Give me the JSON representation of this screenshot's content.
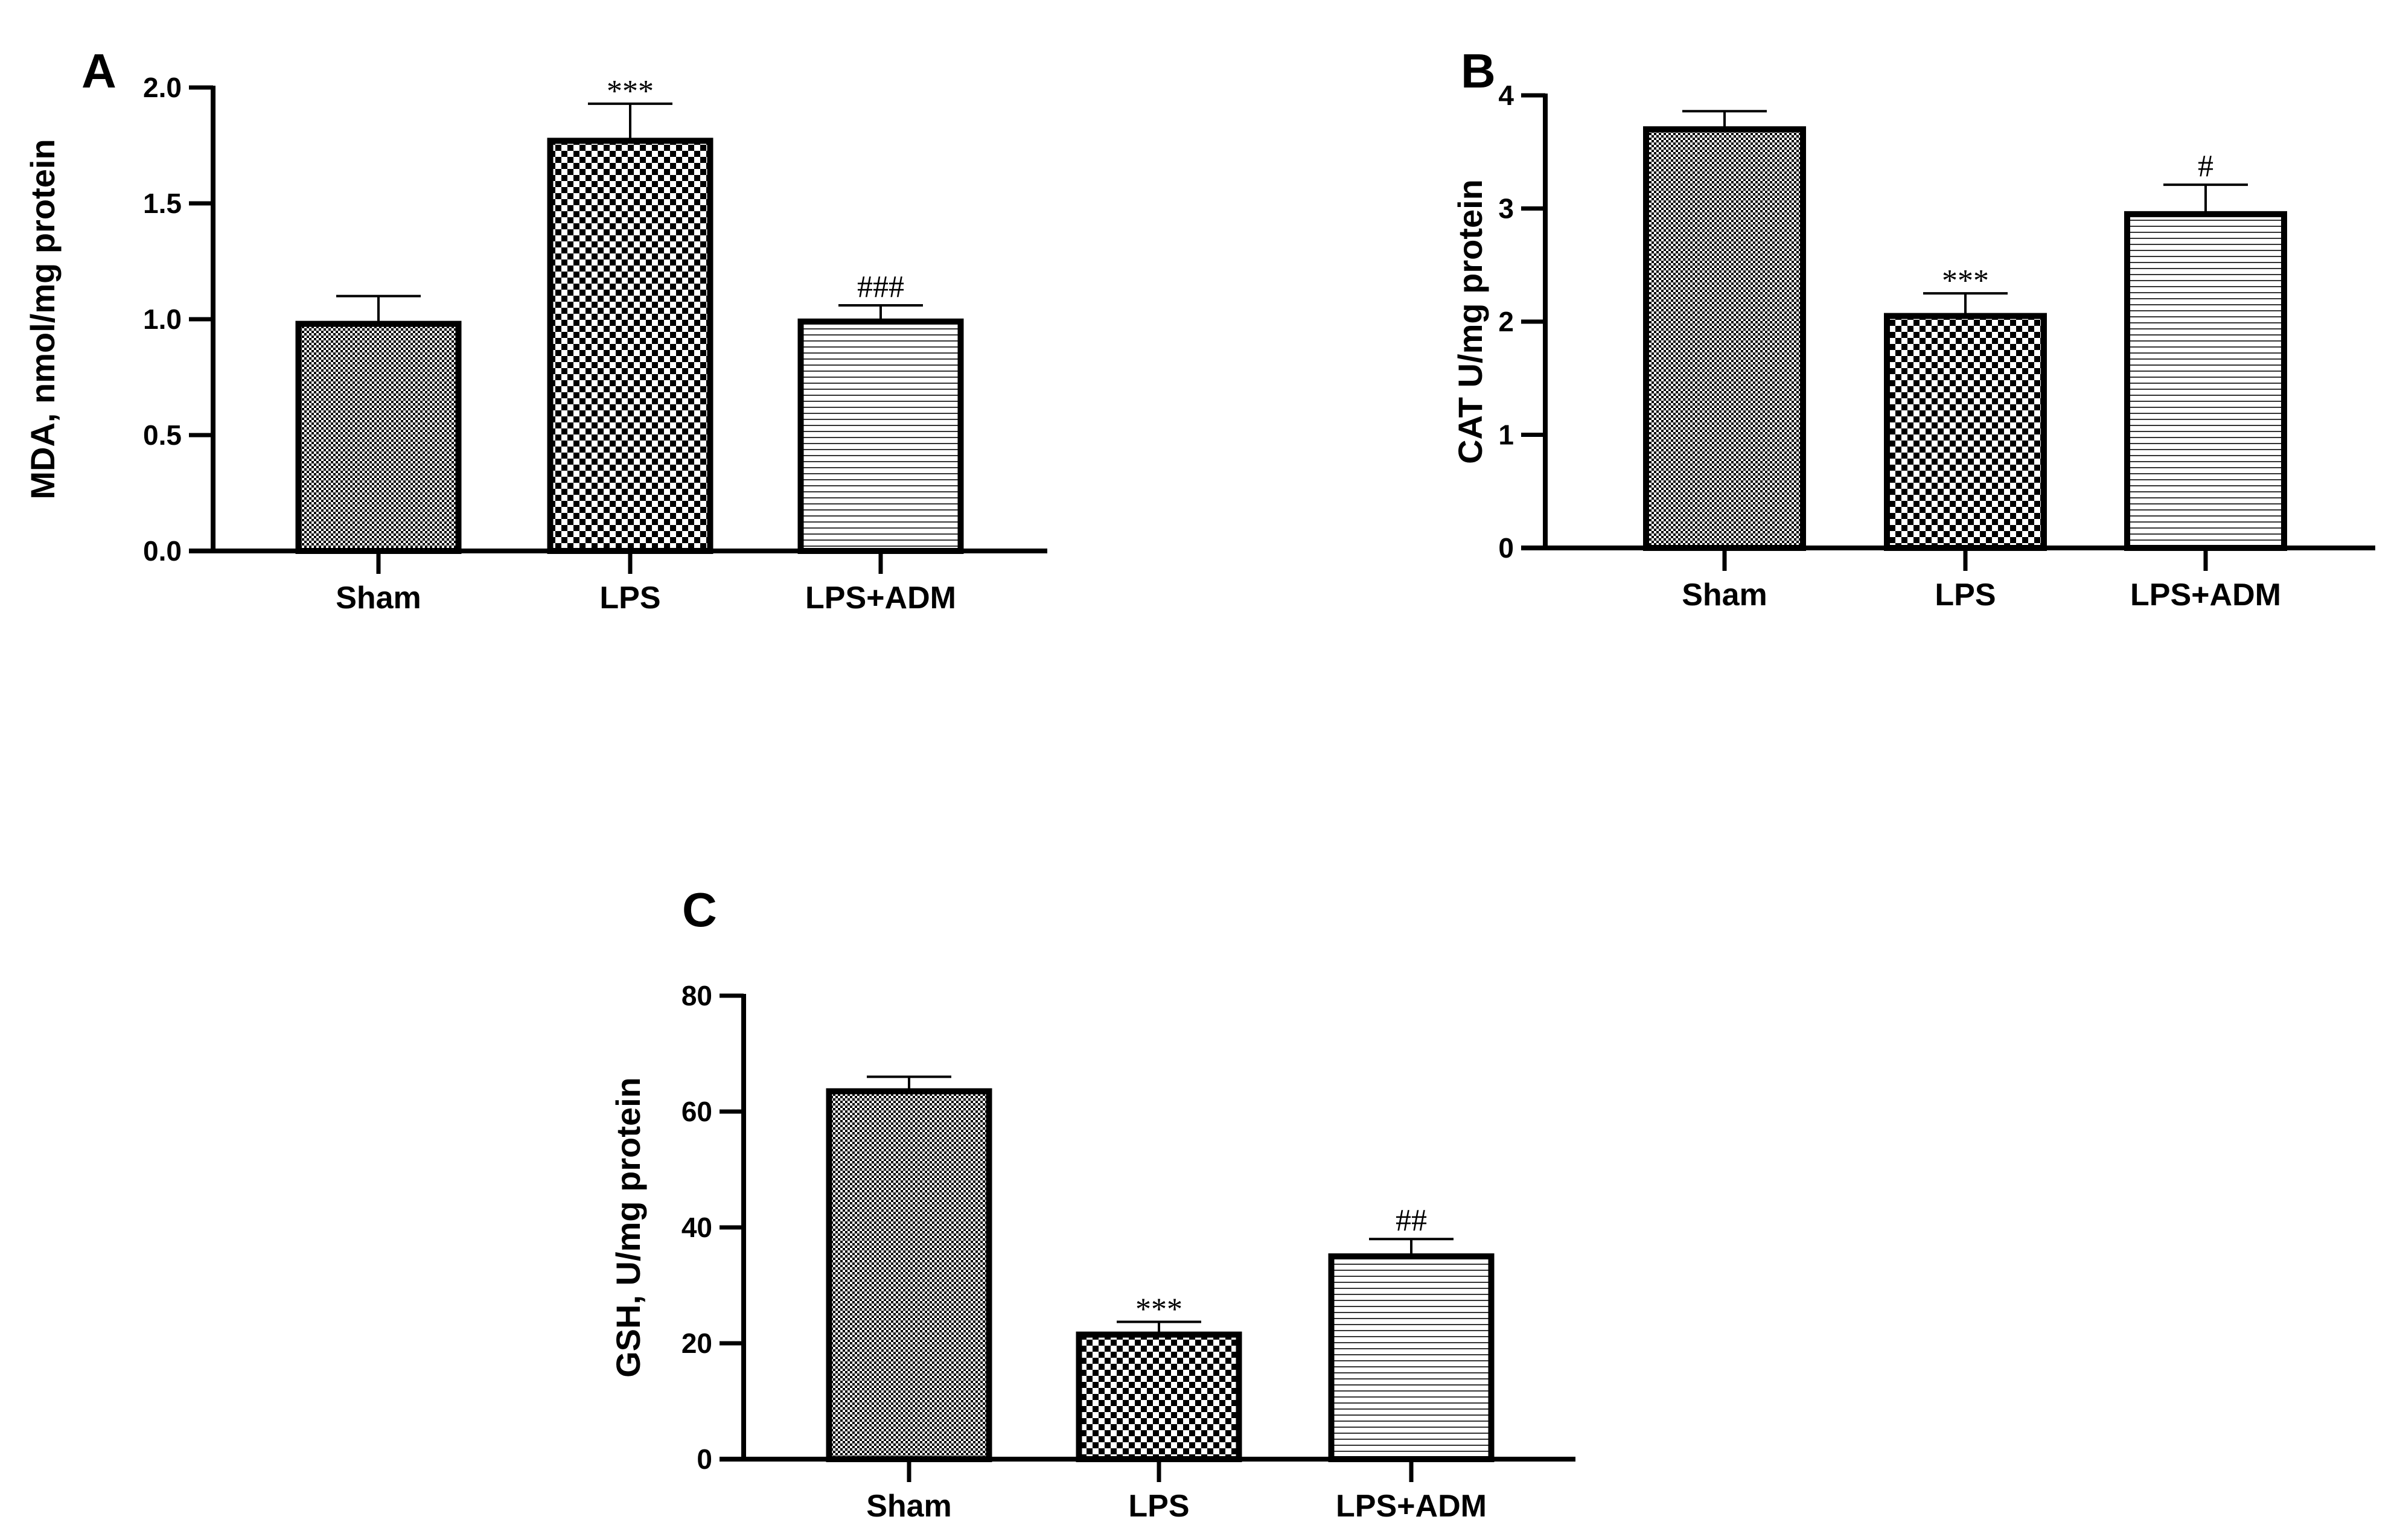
{
  "chart_data": [
    {
      "panel": "A",
      "type": "bar",
      "ylabel": "MDA, nmol/mg protein",
      "ylim": [
        0,
        2.0
      ],
      "yticks": [
        "0.0",
        "0.5",
        "1.0",
        "1.5",
        "2.0"
      ],
      "ytick_values": [
        0,
        0.5,
        1.0,
        1.5,
        2.0
      ],
      "categories": [
        "Sham",
        "LPS",
        "LPS+ADM"
      ],
      "values": [
        0.98,
        1.77,
        0.99
      ],
      "errors": [
        0.12,
        0.16,
        0.07
      ],
      "annotations": [
        "",
        "***",
        "###"
      ]
    },
    {
      "panel": "B",
      "type": "bar",
      "ylabel": "CAT U/mg protein",
      "ylim": [
        0,
        4
      ],
      "yticks": [
        "0",
        "1",
        "2",
        "3",
        "4"
      ],
      "ytick_values": [
        0,
        1,
        2,
        3,
        4
      ],
      "categories": [
        "Sham",
        "LPS",
        "LPS+ADM"
      ],
      "values": [
        3.7,
        2.05,
        2.95
      ],
      "errors": [
        0.16,
        0.2,
        0.26
      ],
      "annotations": [
        "",
        "***",
        "#"
      ]
    },
    {
      "panel": "C",
      "type": "bar",
      "ylabel": "GSH, U/mg protein",
      "ylim": [
        0,
        80
      ],
      "yticks": [
        "0",
        "20",
        "40",
        "60",
        "80"
      ],
      "ytick_values": [
        0,
        20,
        40,
        60,
        80
      ],
      "categories": [
        "Sham",
        "LPS",
        "LPS+ADM"
      ],
      "values": [
        63.5,
        21.5,
        35
      ],
      "errors": [
        2.5,
        2.2,
        3
      ],
      "annotations": [
        "",
        "***",
        "##"
      ]
    }
  ]
}
